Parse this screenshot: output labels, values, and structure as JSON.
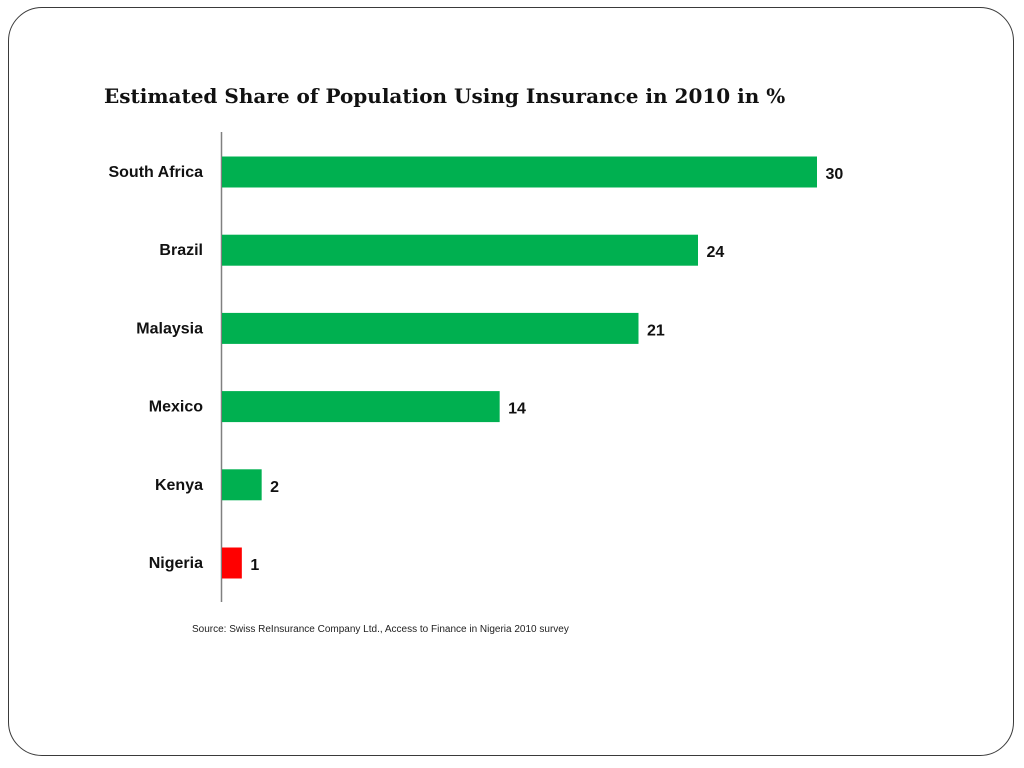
{
  "chart_data": {
    "type": "bar",
    "orientation": "horizontal",
    "title": "Estimated Share of Population Using Insurance in 2010 in %",
    "categories": [
      "South Africa",
      "Brazil",
      "Malaysia",
      "Mexico",
      "Kenya",
      "Nigeria"
    ],
    "values": [
      30,
      24,
      21,
      14,
      2,
      1
    ],
    "data_labels": [
      "30",
      "24",
      "21",
      "14",
      "2",
      "1"
    ],
    "colors": [
      "#00b050",
      "#00b050",
      "#00b050",
      "#00b050",
      "#00b050",
      "#ff0000"
    ],
    "xlim": [
      0,
      30
    ],
    "grid": false,
    "legend": "none",
    "xlabel": "",
    "ylabel": ""
  },
  "source": "Source: Swiss ReInsurance Company Ltd., Access to Finance in Nigeria 2010 survey"
}
